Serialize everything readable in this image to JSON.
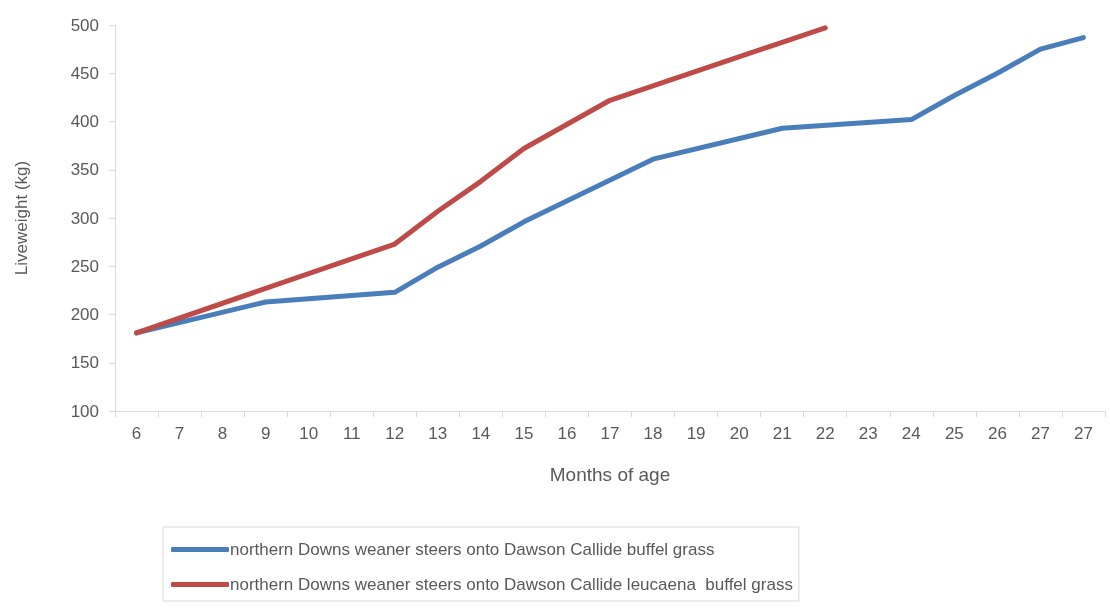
{
  "chart_data": {
    "type": "line",
    "xlabel": "Months of age",
    "ylabel": "Liveweight (kg)",
    "categories": [
      "6",
      "7",
      "8",
      "9",
      "10",
      "11",
      "12",
      "13",
      "14",
      "15",
      "16",
      "17",
      "18",
      "19",
      "20",
      "21",
      "22",
      "23",
      "24",
      "25",
      "26",
      "27",
      "27"
    ],
    "series": [
      {
        "name": "northern Downs weaner steers onto Dawson Callide buffel grass",
        "color": "#4a7ebb",
        "values": [
          181,
          null,
          null,
          213,
          null,
          null,
          223,
          249,
          271,
          296,
          null,
          null,
          361,
          null,
          null,
          393,
          null,
          null,
          402,
          427,
          450,
          475,
          487
        ]
      },
      {
        "name": "northern Downs weaner steers onto Dawson Callide leucaena  buffel grass",
        "color": "#be4b48",
        "values": [
          181,
          null,
          null,
          null,
          null,
          null,
          273,
          307,
          338,
          372,
          null,
          422,
          null,
          null,
          null,
          null,
          497,
          null,
          null,
          null,
          null,
          null,
          null
        ]
      }
    ],
    "ylim": [
      100,
      500
    ],
    "yticks": [
      100,
      150,
      200,
      250,
      300,
      350,
      400,
      450,
      500
    ],
    "grid": false,
    "legend": "bottom",
    "marker": "none",
    "line_style": "solid"
  }
}
